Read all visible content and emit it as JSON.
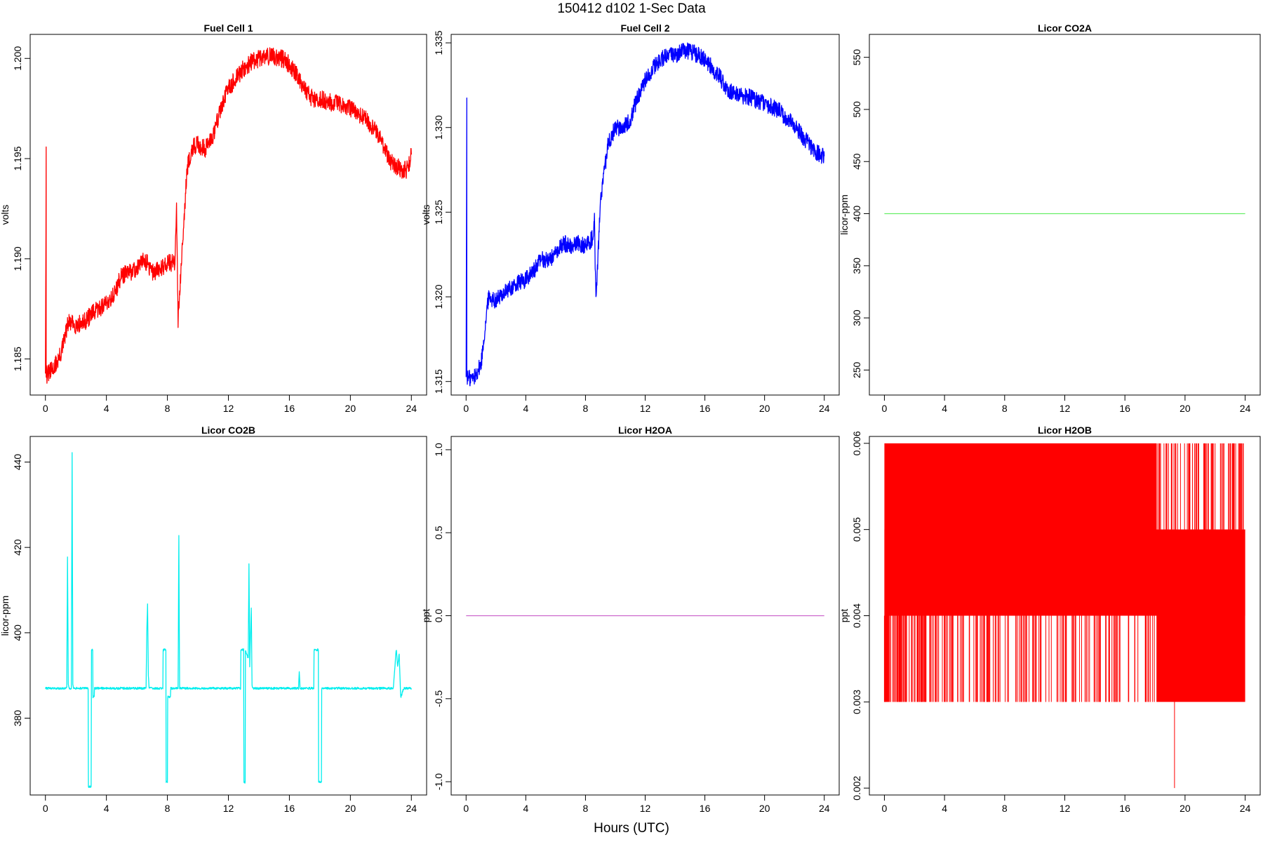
{
  "figure": {
    "title": "150412   d102   1-Sec Data",
    "xlabel": "Hours (UTC)"
  },
  "chart_data": [
    {
      "type": "line",
      "title": "Fuel Cell 1",
      "ylabel": "volts",
      "color": "#ff0000",
      "xlim": [
        -1,
        25
      ],
      "ylim": [
        1.1832,
        1.2012
      ],
      "xticks": [
        "0",
        "4",
        "8",
        "12",
        "16",
        "20",
        "24"
      ],
      "yticks": [
        "1.185",
        "1.190",
        "1.195",
        "1.200"
      ],
      "series": [
        {
          "x": [
            0,
            0.05,
            0.05,
            0.1,
            0.5,
            1,
            1.5,
            2,
            2.5,
            3,
            3.5,
            4,
            4.5,
            5,
            5.5,
            6,
            6.5,
            7,
            7.5,
            8,
            8.5,
            8.6,
            8.7,
            9,
            9.3,
            9.6,
            10,
            10.5,
            11,
            11.5,
            12,
            12.5,
            13,
            13.5,
            14,
            14.5,
            15,
            15.5,
            16,
            16.5,
            17,
            17.5,
            18,
            18.5,
            19,
            19.5,
            20,
            20.5,
            21,
            21.5,
            22,
            22.5,
            23,
            23.5,
            23.8,
            24
          ],
          "y": [
            1.1845,
            1.1953,
            1.1845,
            1.1842,
            1.1845,
            1.1852,
            1.1868,
            1.1867,
            1.1868,
            1.1872,
            1.1875,
            1.1878,
            1.1882,
            1.1892,
            1.1893,
            1.1895,
            1.19,
            1.1893,
            1.1895,
            1.1898,
            1.1898,
            1.1924,
            1.187,
            1.191,
            1.1945,
            1.1955,
            1.1957,
            1.1955,
            1.1962,
            1.1975,
            1.1985,
            1.199,
            1.1995,
            1.1998,
            1.2,
            1.2001,
            1.2001,
            1.2,
            1.1997,
            1.1992,
            1.1985,
            1.198,
            1.198,
            1.1978,
            1.1978,
            1.1976,
            1.1975,
            1.1972,
            1.197,
            1.1965,
            1.196,
            1.195,
            1.1946,
            1.1944,
            1.1945,
            1.1952
          ],
          "noise": 0.00045
        }
      ]
    },
    {
      "type": "line",
      "title": "Fuel Cell 2",
      "ylabel": "volts",
      "color": "#0000ff",
      "xlim": [
        -1,
        25
      ],
      "ylim": [
        1.3142,
        1.3355
      ],
      "xticks": [
        "0",
        "4",
        "8",
        "12",
        "16",
        "20",
        "24"
      ],
      "yticks": [
        "1.315",
        "1.320",
        "1.325",
        "1.330",
        "1.335"
      ],
      "series": [
        {
          "x": [
            0,
            0.05,
            0.05,
            0.1,
            0.5,
            1,
            1.5,
            2,
            2.5,
            3,
            3.5,
            4,
            4.5,
            5,
            5.5,
            6,
            6.5,
            7,
            7.5,
            8,
            8.5,
            8.6,
            8.7,
            9,
            9.5,
            10,
            10.5,
            11,
            11.5,
            12,
            12.5,
            13,
            13.5,
            14,
            14.5,
            15,
            15.5,
            16,
            16.5,
            17,
            17.5,
            18,
            18.5,
            19,
            19.5,
            20,
            20.5,
            21,
            21.5,
            22,
            22.5,
            23,
            23.5,
            24
          ],
          "y": [
            1.3155,
            1.3318,
            1.3155,
            1.3152,
            1.3152,
            1.316,
            1.32,
            1.3198,
            1.3202,
            1.3205,
            1.3208,
            1.321,
            1.3215,
            1.3222,
            1.3222,
            1.3225,
            1.3232,
            1.323,
            1.3232,
            1.323,
            1.3235,
            1.3245,
            1.3198,
            1.3255,
            1.329,
            1.33,
            1.33,
            1.3305,
            1.3318,
            1.3328,
            1.3335,
            1.334,
            1.3342,
            1.3343,
            1.3345,
            1.3345,
            1.3343,
            1.334,
            1.3335,
            1.333,
            1.3322,
            1.332,
            1.3318,
            1.3318,
            1.3316,
            1.3314,
            1.3312,
            1.331,
            1.3305,
            1.3302,
            1.3295,
            1.329,
            1.3285,
            1.3283
          ],
          "noise": 0.0005
        }
      ]
    },
    {
      "type": "line",
      "title": "Licor CO2A",
      "ylabel": "licor-ppm",
      "color": "#66ee66",
      "xlim": [
        -1,
        25
      ],
      "ylim": [
        226,
        572
      ],
      "xticks": [
        "0",
        "4",
        "8",
        "12",
        "16",
        "20",
        "24"
      ],
      "yticks": [
        "250",
        "300",
        "350",
        "400",
        "450",
        "500",
        "550"
      ],
      "series": [
        {
          "x": [
            0,
            24
          ],
          "y": [
            400,
            400
          ],
          "noise": 0
        }
      ]
    },
    {
      "type": "line",
      "title": "Licor CO2B",
      "ylabel": "licor-ppm",
      "color": "#00eeee",
      "xlim": [
        -1,
        25
      ],
      "ylim": [
        362,
        446
      ],
      "xticks": [
        "0",
        "4",
        "8",
        "12",
        "16",
        "20",
        "24"
      ],
      "yticks": [
        "380",
        "400",
        "420",
        "440"
      ],
      "series": [
        {
          "x": [
            0,
            1,
            1.4,
            1.45,
            1.5,
            1.55,
            1.7,
            1.75,
            1.8,
            1.85,
            2.5,
            2.8,
            2.82,
            3.0,
            3.02,
            3.1,
            3.12,
            3.2,
            3.22,
            3.3,
            4,
            5,
            6,
            6.6,
            6.65,
            6.7,
            6.75,
            6.8,
            7,
            7.5,
            7.7,
            7.72,
            7.9,
            7.92,
            8.0,
            8.02,
            8.2,
            8.22,
            8.7,
            8.75,
            8.8,
            9,
            10,
            11,
            12,
            12.8,
            12.82,
            13.0,
            13.02,
            13.1,
            13.12,
            13.3,
            13.35,
            13.4,
            13.5,
            13.55,
            13.6,
            13.7,
            14,
            15,
            16,
            16.6,
            16.65,
            16.7,
            17,
            17.5,
            17.6,
            17.62,
            17.9,
            17.92,
            18.1,
            18.12,
            18.3,
            19,
            20,
            21,
            22,
            22.8,
            22.82,
            23.0,
            23.02,
            23.1,
            23.2,
            23.3,
            23.32,
            23.5,
            24
          ],
          "y": [
            387,
            387,
            387,
            418,
            388,
            387,
            387,
            442,
            388,
            387,
            387,
            387,
            364,
            364,
            396,
            396,
            385,
            385,
            387,
            387,
            387,
            387,
            387,
            387,
            400,
            407,
            390,
            387,
            387,
            387,
            387,
            396,
            396,
            365,
            365,
            385,
            385,
            387,
            387,
            423,
            387,
            387,
            387,
            387,
            387,
            387,
            396,
            396,
            365,
            365,
            396,
            394,
            416,
            392,
            406,
            388,
            387,
            387,
            387,
            387,
            387,
            387,
            391,
            387,
            387,
            387,
            387,
            396,
            396,
            365,
            365,
            387,
            387,
            387,
            387,
            387,
            387,
            387,
            387,
            396,
            396,
            392,
            395,
            385,
            385,
            387,
            387
          ],
          "noise": 0.25
        }
      ]
    },
    {
      "type": "line",
      "title": "Licor H2OA",
      "ylabel": "ppt",
      "color": "#cc66cc",
      "xlim": [
        -1,
        25
      ],
      "ylim": [
        -1.08,
        1.08
      ],
      "xticks": [
        "0",
        "4",
        "8",
        "12",
        "16",
        "20",
        "24"
      ],
      "yticks": [
        "-1.0",
        "-0.5",
        "0.0",
        "0.5",
        "1.0"
      ],
      "series": [
        {
          "x": [
            0,
            24
          ],
          "y": [
            0,
            0
          ],
          "noise": 0
        }
      ]
    },
    {
      "type": "line",
      "title": "Licor H2OB",
      "ylabel": "ppt",
      "color": "#ff0000",
      "xlim": [
        -1,
        25
      ],
      "ylim": [
        0.00192,
        0.00608
      ],
      "xticks": [
        "0",
        "4",
        "8",
        "12",
        "16",
        "20",
        "24"
      ],
      "yticks": [
        "0.002",
        "0.003",
        "0.004",
        "0.005",
        "0.006"
      ],
      "series": [
        {
          "step_band": [
            {
              "from": 0,
              "to": 18.1,
              "low": 0.004,
              "high": 0.006
            },
            {
              "from": 18.1,
              "to": 24,
              "low": 0.003,
              "high": 0.005
            },
            {
              "from": 0,
              "to": 24,
              "low": 0.004,
              "high": 0.005
            }
          ],
          "spikes": [
            {
              "x": 0.03,
              "y": 0.003
            },
            {
              "x": 0.4,
              "y": 0.003
            },
            {
              "x": 19.3,
              "y": 0.002
            },
            {
              "x": 20.8,
              "y": 0.004
            }
          ]
        }
      ]
    }
  ]
}
